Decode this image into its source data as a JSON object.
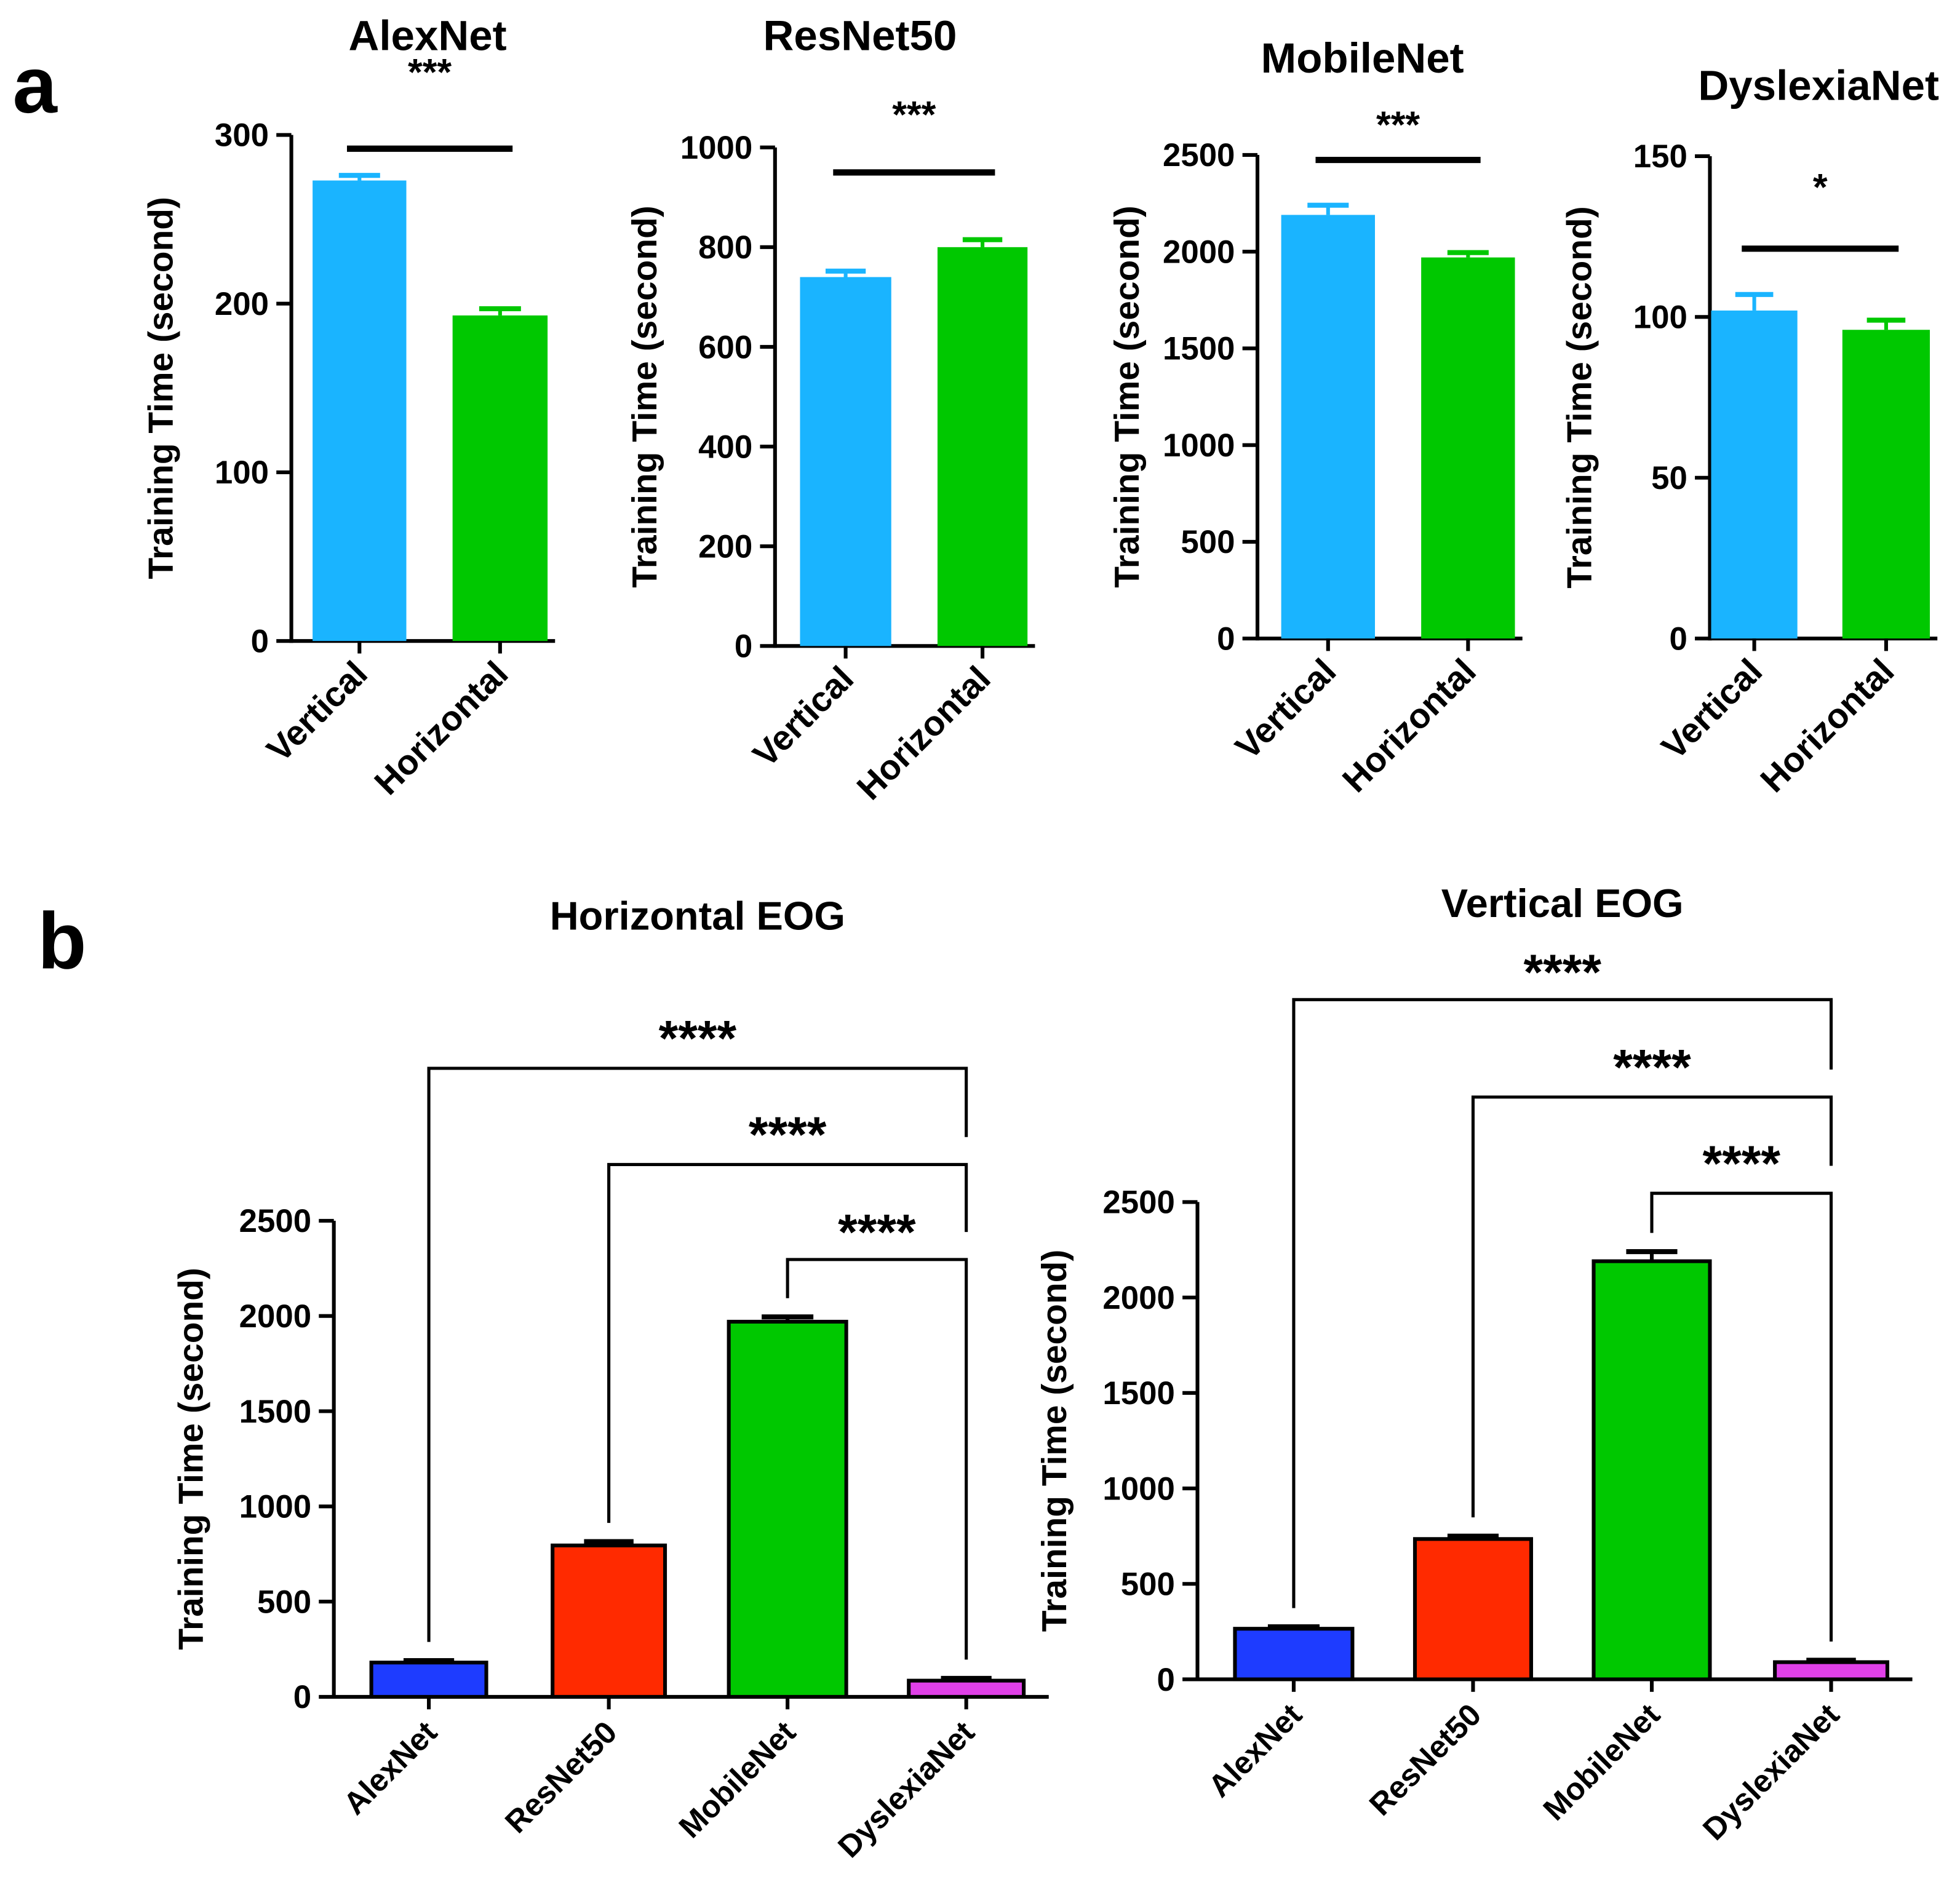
{
  "panel_labels": [
    "a",
    "b"
  ],
  "colors": {
    "vertical": "#1AB4FF",
    "horizontal": "#00C800",
    "AlexNet": "#1E3CFF",
    "ResNet50": "#FF2A00",
    "MobileNet": "#00C800",
    "DyslexiaNet": "#E040E8"
  },
  "chart_data": [
    {
      "type": "bar",
      "title": "AlexNet",
      "ylabel": "Training Time (second)",
      "categories": [
        "Vertical",
        "Horizontal"
      ],
      "values": [
        273,
        193
      ],
      "errors": [
        3,
        4
      ],
      "ylim": [
        0,
        300
      ],
      "yticks": [
        0,
        100,
        200,
        300
      ],
      "significance": [
        {
          "from": 0,
          "to": 1,
          "label": "***"
        }
      ]
    },
    {
      "type": "bar",
      "title": "ResNet50",
      "ylabel": "Training Time (second)",
      "categories": [
        "Vertical",
        "Horizontal"
      ],
      "values": [
        740,
        800
      ],
      "errors": [
        12,
        15
      ],
      "ylim": [
        0,
        1000
      ],
      "yticks": [
        0,
        200,
        400,
        600,
        800,
        1000
      ],
      "significance": [
        {
          "from": 0,
          "to": 1,
          "label": "***"
        }
      ]
    },
    {
      "type": "bar",
      "title": "MobileNet",
      "ylabel": "Training Time (second)",
      "categories": [
        "Vertical",
        "Horizontal"
      ],
      "values": [
        2190,
        1970
      ],
      "errors": [
        50,
        25
      ],
      "ylim": [
        0,
        2500
      ],
      "yticks": [
        0,
        500,
        1000,
        1500,
        2000,
        2500
      ],
      "significance": [
        {
          "from": 0,
          "to": 1,
          "label": "***"
        }
      ]
    },
    {
      "type": "bar",
      "title": "DyslexiaNet",
      "ylabel": "Training Time (second)",
      "categories": [
        "Vertical",
        "Horizontal"
      ],
      "values": [
        102,
        96
      ],
      "errors": [
        5,
        3
      ],
      "ylim": [
        0,
        150
      ],
      "yticks": [
        0,
        50,
        100,
        150
      ],
      "significance": [
        {
          "from": 0,
          "to": 1,
          "label": "*"
        }
      ]
    },
    {
      "type": "bar",
      "title": "Horizontal EOG",
      "ylabel": "Training Time (second)",
      "categories": [
        "AlexNet",
        "ResNet50",
        "MobileNet",
        "DyslexiaNet"
      ],
      "values": [
        180,
        795,
        1970,
        85
      ],
      "errors": [
        10,
        20,
        25,
        12
      ],
      "ylim": [
        0,
        2500
      ],
      "yticks": [
        0,
        500,
        1000,
        1500,
        2000,
        2500
      ],
      "significance": [
        {
          "from": 0,
          "to": 3,
          "label": "****"
        },
        {
          "from": 1,
          "to": 3,
          "label": "****"
        },
        {
          "from": 2,
          "to": 3,
          "label": "****"
        }
      ]
    },
    {
      "type": "bar",
      "title": "Vertical EOG",
      "ylabel": "Training Time (second)",
      "categories": [
        "AlexNet",
        "ResNet50",
        "MobileNet",
        "DyslexiaNet"
      ],
      "values": [
        265,
        735,
        2190,
        90
      ],
      "errors": [
        10,
        15,
        50,
        10
      ],
      "ylim": [
        0,
        2500
      ],
      "yticks": [
        0,
        500,
        1000,
        1500,
        2000,
        2500
      ],
      "significance": [
        {
          "from": 0,
          "to": 3,
          "label": "****"
        },
        {
          "from": 1,
          "to": 3,
          "label": "****"
        },
        {
          "from": 2,
          "to": 3,
          "label": "****"
        }
      ]
    }
  ]
}
